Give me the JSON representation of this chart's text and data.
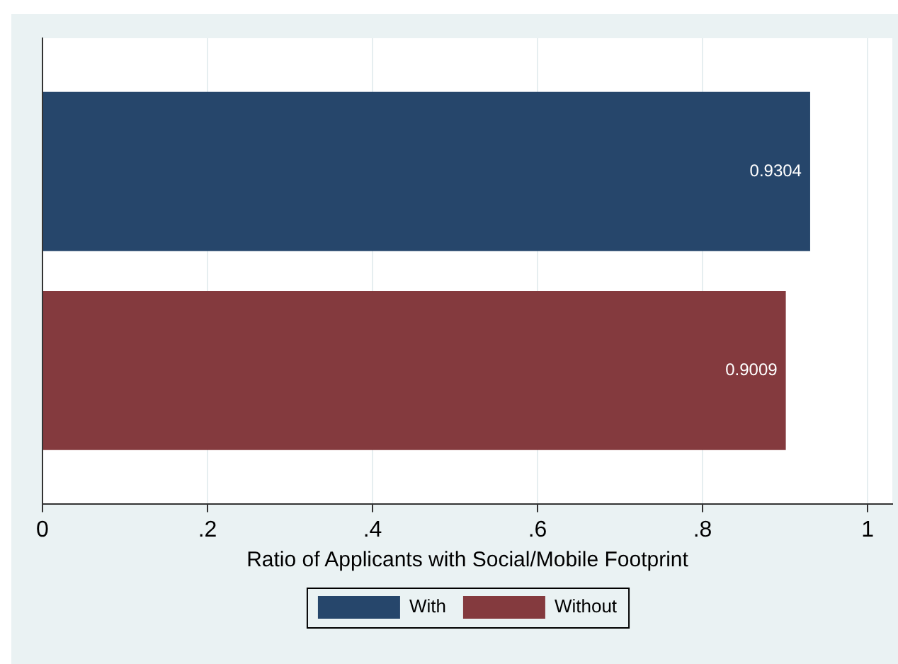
{
  "chart_data": {
    "type": "bar",
    "orientation": "horizontal",
    "xlabel": "Ratio of Applicants with Social/Mobile Footprint",
    "categories": [
      null
    ],
    "series": [
      {
        "name": "With",
        "color": "#26466b",
        "values": [
          0.9304
        ]
      },
      {
        "name": "Without",
        "color": "#843a3e",
        "values": [
          0.9009
        ]
      }
    ],
    "xlim": [
      0,
      1.03
    ],
    "xticks": [
      0,
      {
        "value": 0.2,
        "label": ".2"
      },
      {
        "value": 0.4,
        "label": ".4"
      },
      {
        "value": 0.6,
        "label": ".6"
      },
      {
        "value": 0.8,
        "label": ".8"
      },
      1
    ],
    "grid": "x",
    "legend": "bottom",
    "data_labels": true
  }
}
